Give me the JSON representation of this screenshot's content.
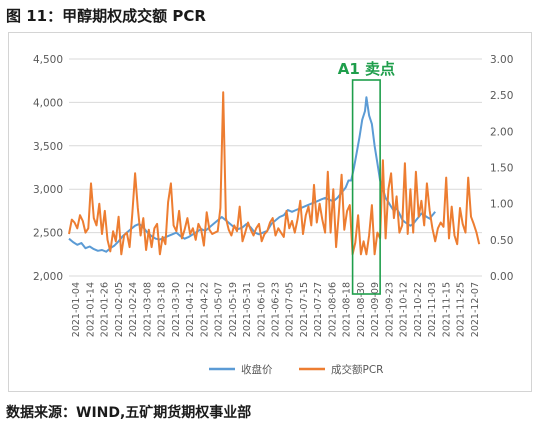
{
  "figure": {
    "title": "图 11：甲醇期权成交额 PCR",
    "source": "数据来源：WIND,五矿期货期权事业部"
  },
  "chart_data": {
    "type": "line",
    "title": "",
    "xlabel": "",
    "ylabel": "",
    "y_left": {
      "lim": [
        2000,
        4500
      ],
      "ticks": [
        "2,000",
        "2,500",
        "3,000",
        "3,500",
        "4,000",
        "4,500"
      ]
    },
    "y_right": {
      "lim": [
        0,
        3
      ],
      "ticks": [
        "0.00",
        "0.50",
        "1.00",
        "1.50",
        "2.00",
        "2.50",
        "3.00"
      ]
    },
    "x_tick_labels": [
      "2021-01-04",
      "2021-01-14",
      "2021-01-26",
      "2021-02-05",
      "2021-02-24",
      "2021-03-08",
      "2021-03-18",
      "2021-03-30",
      "2021-04-12",
      "2021-04-22",
      "2021-05-07",
      "2021-05-19",
      "2021-05-31",
      "2021-06-10",
      "2021-06-23",
      "2021-07-05",
      "2021-07-15",
      "2021-07-27",
      "2021-08-06",
      "2021-08-18",
      "2021-08-30",
      "2021-09-09",
      "2021-09-23",
      "2021-10-12",
      "2021-10-22",
      "2021-11-03",
      "2021-11-15",
      "2021-11-25",
      "2021-12-07"
    ],
    "grid": "horizontal",
    "legend_position": "bottom-center",
    "annotation": {
      "text": "A1 卖点",
      "x_start": 206,
      "x_end": 226,
      "color": "#1e9e4b"
    },
    "series": [
      {
        "name": "收盘价",
        "axis": "left",
        "color": "#5b9bd5",
        "points": [
          [
            0,
            2430
          ],
          [
            3,
            2390
          ],
          [
            6,
            2360
          ],
          [
            9,
            2380
          ],
          [
            12,
            2320
          ],
          [
            15,
            2340
          ],
          [
            18,
            2310
          ],
          [
            21,
            2290
          ],
          [
            24,
            2300
          ],
          [
            27,
            2280
          ],
          [
            30,
            2320
          ],
          [
            33,
            2350
          ],
          [
            36,
            2400
          ],
          [
            39,
            2460
          ],
          [
            42,
            2500
          ],
          [
            45,
            2540
          ],
          [
            48,
            2580
          ],
          [
            51,
            2600
          ],
          [
            54,
            2560
          ],
          [
            57,
            2500
          ],
          [
            60,
            2460
          ],
          [
            63,
            2430
          ],
          [
            66,
            2420
          ],
          [
            69,
            2440
          ],
          [
            72,
            2460
          ],
          [
            75,
            2480
          ],
          [
            78,
            2500
          ],
          [
            81,
            2460
          ],
          [
            84,
            2430
          ],
          [
            87,
            2450
          ],
          [
            90,
            2480
          ],
          [
            93,
            2510
          ],
          [
            96,
            2540
          ],
          [
            99,
            2520
          ],
          [
            102,
            2560
          ],
          [
            105,
            2600
          ],
          [
            108,
            2640
          ],
          [
            111,
            2680
          ],
          [
            114,
            2640
          ],
          [
            117,
            2600
          ],
          [
            120,
            2560
          ],
          [
            123,
            2540
          ],
          [
            126,
            2560
          ],
          [
            129,
            2600
          ],
          [
            132,
            2560
          ],
          [
            135,
            2500
          ],
          [
            138,
            2480
          ],
          [
            141,
            2500
          ],
          [
            144,
            2520
          ],
          [
            147,
            2600
          ],
          [
            150,
            2640
          ],
          [
            153,
            2680
          ],
          [
            156,
            2700
          ],
          [
            159,
            2760
          ],
          [
            162,
            2740
          ],
          [
            165,
            2760
          ],
          [
            168,
            2780
          ],
          [
            171,
            2800
          ],
          [
            174,
            2820
          ],
          [
            177,
            2840
          ],
          [
            180,
            2860
          ],
          [
            183,
            2880
          ],
          [
            186,
            2900
          ],
          [
            189,
            2880
          ],
          [
            192,
            2860
          ],
          [
            195,
            2900
          ],
          [
            198,
            2960
          ],
          [
            201,
            3020
          ],
          [
            203,
            3100
          ],
          [
            205,
            3100
          ],
          [
            207,
            3250
          ],
          [
            209,
            3420
          ],
          [
            211,
            3600
          ],
          [
            213,
            3800
          ],
          [
            215,
            3900
          ],
          [
            216,
            4060
          ],
          [
            218,
            3850
          ],
          [
            220,
            3750
          ],
          [
            222,
            3500
          ],
          [
            224,
            3300
          ],
          [
            226,
            3100
          ],
          [
            228,
            3000
          ],
          [
            230,
            2900
          ],
          [
            232,
            2850
          ],
          [
            234,
            2800
          ],
          [
            236,
            2750
          ],
          [
            238,
            2780
          ],
          [
            240,
            2720
          ],
          [
            242,
            2650
          ],
          [
            244,
            2620
          ],
          [
            246,
            2600
          ],
          [
            248,
            2580
          ],
          [
            250,
            2600
          ],
          [
            252,
            2640
          ],
          [
            254,
            2680
          ],
          [
            256,
            2720
          ],
          [
            258,
            2700
          ],
          [
            260,
            2680
          ],
          [
            262,
            2660
          ],
          [
            264,
            2700
          ],
          [
            266,
            2740
          ]
        ]
      },
      {
        "name": "成交额PCR",
        "axis": "right",
        "color": "#ed7d31",
        "points": [
          [
            0,
            0.58
          ],
          [
            2,
            0.78
          ],
          [
            4,
            0.74
          ],
          [
            6,
            0.66
          ],
          [
            8,
            0.84
          ],
          [
            10,
            0.76
          ],
          [
            12,
            0.6
          ],
          [
            14,
            0.66
          ],
          [
            16,
            1.28
          ],
          [
            18,
            0.8
          ],
          [
            20,
            0.7
          ],
          [
            22,
            1.0
          ],
          [
            24,
            0.58
          ],
          [
            26,
            0.9
          ],
          [
            28,
            0.5
          ],
          [
            30,
            0.34
          ],
          [
            32,
            0.62
          ],
          [
            34,
            0.48
          ],
          [
            36,
            0.82
          ],
          [
            38,
            0.3
          ],
          [
            40,
            0.56
          ],
          [
            42,
            0.6
          ],
          [
            44,
            0.4
          ],
          [
            46,
            0.86
          ],
          [
            48,
            1.42
          ],
          [
            50,
            0.94
          ],
          [
            52,
            0.56
          ],
          [
            54,
            0.8
          ],
          [
            56,
            0.36
          ],
          [
            58,
            0.64
          ],
          [
            60,
            0.4
          ],
          [
            62,
            0.66
          ],
          [
            64,
            0.72
          ],
          [
            66,
            0.3
          ],
          [
            68,
            0.54
          ],
          [
            70,
            0.44
          ],
          [
            72,
            1.02
          ],
          [
            74,
            1.28
          ],
          [
            76,
            0.7
          ],
          [
            78,
            0.62
          ],
          [
            80,
            0.9
          ],
          [
            82,
            0.52
          ],
          [
            84,
            0.64
          ],
          [
            86,
            0.8
          ],
          [
            88,
            0.58
          ],
          [
            90,
            0.66
          ],
          [
            92,
            0.5
          ],
          [
            94,
            0.72
          ],
          [
            96,
            0.64
          ],
          [
            98,
            0.42
          ],
          [
            100,
            0.88
          ],
          [
            102,
            0.64
          ],
          [
            104,
            0.58
          ],
          [
            106,
            0.6
          ],
          [
            108,
            0.62
          ],
          [
            110,
            0.94
          ],
          [
            112,
            2.54
          ],
          [
            114,
            0.8
          ],
          [
            116,
            0.64
          ],
          [
            118,
            0.56
          ],
          [
            120,
            0.7
          ],
          [
            122,
            0.62
          ],
          [
            124,
            0.96
          ],
          [
            126,
            0.48
          ],
          [
            128,
            0.6
          ],
          [
            130,
            0.74
          ],
          [
            132,
            0.64
          ],
          [
            134,
            0.56
          ],
          [
            136,
            0.66
          ],
          [
            138,
            0.72
          ],
          [
            140,
            0.48
          ],
          [
            142,
            0.58
          ],
          [
            144,
            0.62
          ],
          [
            146,
            0.74
          ],
          [
            148,
            0.8
          ],
          [
            150,
            0.56
          ],
          [
            152,
            0.66
          ],
          [
            154,
            0.6
          ],
          [
            156,
            0.54
          ],
          [
            158,
            0.9
          ],
          [
            160,
            0.66
          ],
          [
            162,
            0.76
          ],
          [
            164,
            0.6
          ],
          [
            166,
            0.78
          ],
          [
            168,
            1.04
          ],
          [
            170,
            0.58
          ],
          [
            172,
            0.84
          ],
          [
            174,
            0.96
          ],
          [
            176,
            0.7
          ],
          [
            178,
            1.26
          ],
          [
            180,
            0.74
          ],
          [
            182,
            1.0
          ],
          [
            184,
            0.78
          ],
          [
            186,
            0.6
          ],
          [
            188,
            1.44
          ],
          [
            190,
            0.6
          ],
          [
            192,
            1.2
          ],
          [
            194,
            0.4
          ],
          [
            196,
            0.86
          ],
          [
            198,
            1.4
          ],
          [
            200,
            0.64
          ],
          [
            202,
            0.9
          ],
          [
            204,
            0.98
          ],
          [
            206,
            0.3
          ],
          [
            208,
            0.46
          ],
          [
            210,
            0.84
          ],
          [
            212,
            0.3
          ],
          [
            214,
            0.48
          ],
          [
            216,
            0.3
          ],
          [
            218,
            0.56
          ],
          [
            220,
            0.98
          ],
          [
            222,
            0.3
          ],
          [
            224,
            0.6
          ],
          [
            226,
            0.52
          ],
          [
            228,
            1.6
          ],
          [
            230,
            0.52
          ],
          [
            232,
            1.2
          ],
          [
            234,
            1.42
          ],
          [
            236,
            0.8
          ],
          [
            238,
            1.1
          ],
          [
            240,
            0.6
          ],
          [
            242,
            0.7
          ],
          [
            244,
            1.56
          ],
          [
            246,
            0.58
          ],
          [
            248,
            1.2
          ],
          [
            250,
            0.6
          ],
          [
            252,
            1.44
          ],
          [
            254,
            0.82
          ],
          [
            256,
            1.04
          ],
          [
            258,
            0.7
          ],
          [
            260,
            1.28
          ],
          [
            262,
            0.9
          ],
          [
            264,
            0.66
          ],
          [
            266,
            0.48
          ],
          [
            268,
            0.66
          ],
          [
            270,
            0.74
          ],
          [
            272,
            0.68
          ],
          [
            274,
            1.36
          ],
          [
            276,
            0.52
          ],
          [
            278,
            0.96
          ],
          [
            280,
            0.56
          ],
          [
            282,
            0.44
          ],
          [
            284,
            0.94
          ],
          [
            286,
            0.72
          ],
          [
            288,
            0.6
          ],
          [
            290,
            1.36
          ],
          [
            292,
            0.82
          ],
          [
            294,
            0.72
          ],
          [
            296,
            0.6
          ],
          [
            298,
            0.44
          ]
        ]
      }
    ]
  }
}
